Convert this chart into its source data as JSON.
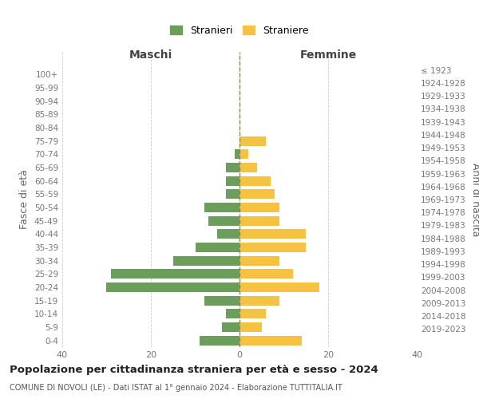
{
  "age_groups": [
    "0-4",
    "5-9",
    "10-14",
    "15-19",
    "20-24",
    "25-29",
    "30-34",
    "35-39",
    "40-44",
    "45-49",
    "50-54",
    "55-59",
    "60-64",
    "65-69",
    "70-74",
    "75-79",
    "80-84",
    "85-89",
    "90-94",
    "95-99",
    "100+"
  ],
  "birth_years": [
    "2019-2023",
    "2014-2018",
    "2009-2013",
    "2004-2008",
    "1999-2003",
    "1994-1998",
    "1989-1993",
    "1984-1988",
    "1979-1983",
    "1974-1978",
    "1969-1973",
    "1964-1968",
    "1959-1963",
    "1954-1958",
    "1949-1953",
    "1944-1948",
    "1939-1943",
    "1934-1938",
    "1929-1933",
    "1924-1928",
    "≤ 1923"
  ],
  "maschi": [
    9,
    4,
    3,
    8,
    30,
    29,
    15,
    10,
    5,
    7,
    8,
    3,
    3,
    3,
    1,
    0,
    0,
    0,
    0,
    0,
    0
  ],
  "femmine": [
    14,
    5,
    6,
    9,
    18,
    12,
    9,
    15,
    15,
    9,
    9,
    8,
    7,
    4,
    2,
    6,
    0,
    0,
    0,
    0,
    0
  ],
  "color_maschi": "#6a9e5a",
  "color_femmine": "#f5c242",
  "title": "Popolazione per cittadinanza straniera per età e sesso - 2024",
  "subtitle": "COMUNE DI NOVOLI (LE) - Dati ISTAT al 1° gennaio 2024 - Elaborazione TUTTITALIA.IT",
  "xlabel_left": "Maschi",
  "xlabel_right": "Femmine",
  "ylabel_left": "Fasce di età",
  "ylabel_right": "Anni di nascita",
  "legend_maschi": "Stranieri",
  "legend_femmine": "Straniere",
  "xlim": 40,
  "background_color": "#ffffff",
  "grid_color": "#cccccc"
}
